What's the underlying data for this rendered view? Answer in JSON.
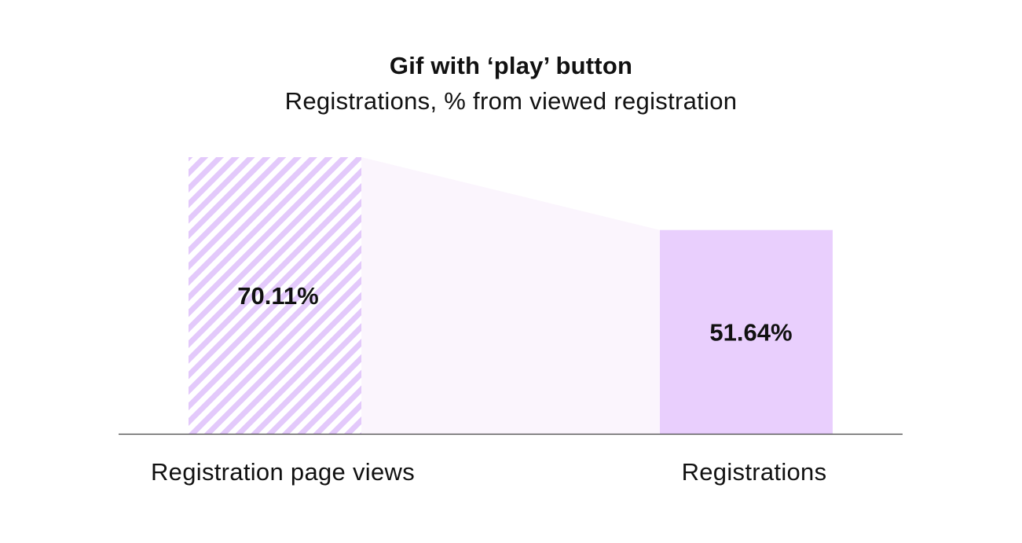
{
  "chart_data": {
    "type": "bar",
    "title": "Gif with ‘play’ button",
    "subtitle": "Registrations, % from viewed registration",
    "categories": [
      "Registration page views",
      "Registrations"
    ],
    "values": [
      70.11,
      51.64
    ],
    "value_labels": [
      "70.11%",
      "51.64%"
    ],
    "ylim": [
      0,
      70.11
    ],
    "grid": false,
    "legend": "none",
    "colors": {
      "bar_hatch_stripe": "#e3c9fb",
      "bar_solid": "#e9cffd",
      "funnel_connector": "#fbf5fd",
      "baseline": "#444444",
      "text": "#111111"
    }
  }
}
